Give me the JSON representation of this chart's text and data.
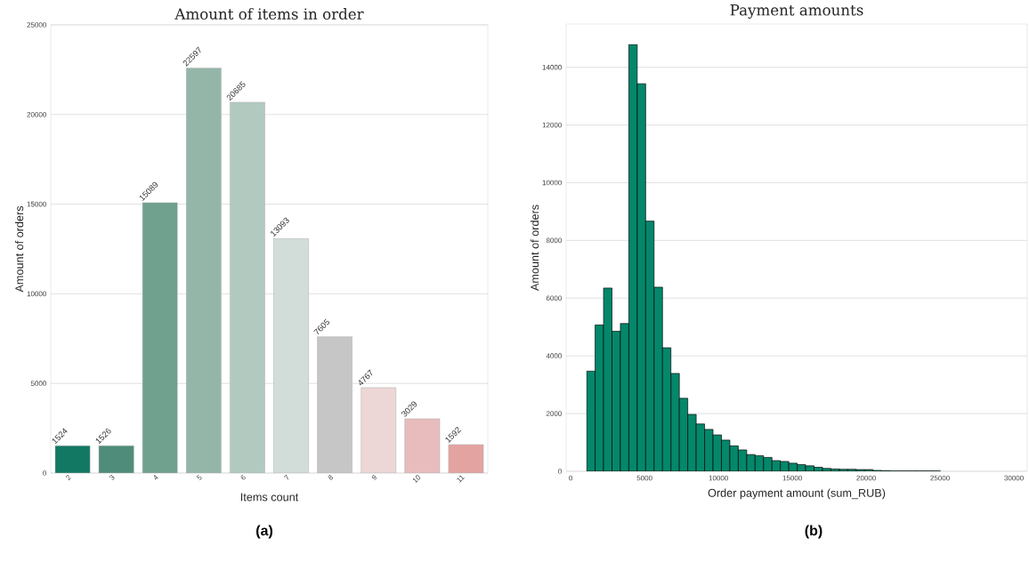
{
  "chart_data": [
    {
      "type": "bar",
      "title": "Amount of items in order",
      "xlabel": "Items count",
      "ylabel": "Amount of orders",
      "categories": [
        "2",
        "3",
        "4",
        "5",
        "6",
        "7",
        "8",
        "9",
        "10",
        "11"
      ],
      "values": [
        1524,
        1526,
        15089,
        22597,
        20685,
        13093,
        7605,
        4767,
        3029,
        1592
      ],
      "colors": [
        "#137863",
        "#4f8c79",
        "#70a08e",
        "#93b6a8",
        "#b2c9c0",
        "#d2ddd9",
        "#c6c6c6",
        "#ecd6d6",
        "#e8bcbc",
        "#e2a3a1"
      ],
      "data_labels": true,
      "ylim": [
        0,
        25000
      ],
      "yticks": [
        0,
        5000,
        10000,
        15000,
        20000,
        25000
      ],
      "grid": "y",
      "annotations": [
        "(a)"
      ]
    },
    {
      "type": "histogram",
      "title": "Payment amounts",
      "xlabel": "Order payment amount (sum_RUB)",
      "ylabel": "Amount of orders",
      "bins": [
        1083,
        1653,
        2223,
        2793,
        3363,
        3933,
        4503,
        5073,
        5643,
        6213,
        6783,
        7353,
        7923,
        8493,
        9063,
        9633,
        10203,
        10773,
        11343,
        11913,
        12483,
        13053,
        13623,
        14193,
        14763,
        15333,
        15903,
        16473,
        17043,
        17613,
        18183,
        18753,
        19323,
        19893,
        20463,
        21033,
        21603,
        22173,
        22743,
        23313,
        23883,
        24453,
        25023
      ],
      "values": [
        3470,
        5070,
        6350,
        4850,
        5120,
        14790,
        13430,
        8670,
        6380,
        4280,
        3390,
        2530,
        1970,
        1640,
        1450,
        1260,
        1080,
        880,
        740,
        580,
        540,
        480,
        370,
        340,
        280,
        230,
        190,
        140,
        100,
        80,
        70,
        70,
        60,
        60,
        30,
        20,
        10,
        10,
        10,
        10,
        10,
        10
      ],
      "color": "#04876a",
      "xlim": [
        -310,
        30900
      ],
      "ylim": [
        0,
        15500
      ],
      "xticks": [
        0,
        5000,
        10000,
        15000,
        20000,
        25000,
        30000
      ],
      "yticks": [
        0,
        2000,
        4000,
        6000,
        8000,
        10000,
        12000,
        14000
      ],
      "grid": "y",
      "annotations": [
        "(b)"
      ]
    }
  ]
}
